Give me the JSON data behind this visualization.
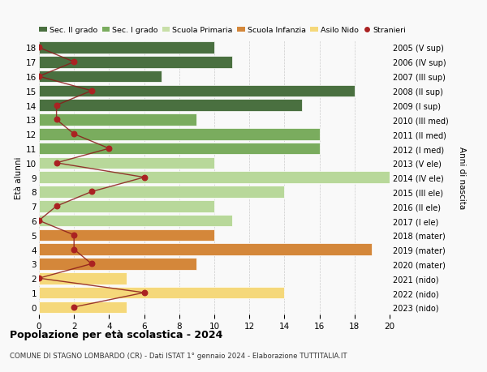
{
  "ages": [
    18,
    17,
    16,
    15,
    14,
    13,
    12,
    11,
    10,
    9,
    8,
    7,
    6,
    5,
    4,
    3,
    2,
    1,
    0
  ],
  "years_labels": [
    "2005 (V sup)",
    "2006 (IV sup)",
    "2007 (III sup)",
    "2008 (II sup)",
    "2009 (I sup)",
    "2010 (III med)",
    "2011 (II med)",
    "2012 (I med)",
    "2013 (V ele)",
    "2014 (IV ele)",
    "2015 (III ele)",
    "2016 (II ele)",
    "2017 (I ele)",
    "2018 (mater)",
    "2019 (mater)",
    "2020 (mater)",
    "2021 (nido)",
    "2022 (nido)",
    "2023 (nido)"
  ],
  "bar_values": [
    10,
    11,
    7,
    18,
    15,
    9,
    16,
    16,
    10,
    20,
    14,
    10,
    11,
    10,
    19,
    9,
    5,
    14,
    5
  ],
  "bar_colors": [
    "#4a7040",
    "#4a7040",
    "#4a7040",
    "#4a7040",
    "#4a7040",
    "#7aac5e",
    "#7aac5e",
    "#7aac5e",
    "#b8d89a",
    "#b8d89a",
    "#b8d89a",
    "#b8d89a",
    "#b8d89a",
    "#d4873a",
    "#d4873a",
    "#d4873a",
    "#f5d87a",
    "#f5d87a",
    "#f5d87a"
  ],
  "stranieri_values": [
    0,
    2,
    0,
    3,
    1,
    1,
    2,
    4,
    1,
    6,
    3,
    1,
    0,
    2,
    2,
    3,
    0,
    6,
    2
  ],
  "legend_labels": [
    "Sec. II grado",
    "Sec. I grado",
    "Scuola Primaria",
    "Scuola Infanzia",
    "Asilo Nido",
    "Stranieri"
  ],
  "legend_colors": [
    "#4a7040",
    "#7aac5e",
    "#c8dfa8",
    "#d4873a",
    "#f5d87a",
    "#aa2222"
  ],
  "title": "Popolazione per età scolastica - 2024",
  "subtitle": "COMUNE DI STAGNO LOMBARDO (CR) - Dati ISTAT 1° gennaio 2024 - Elaborazione TUTTITALIA.IT",
  "ylabel_left": "Età alunni",
  "ylabel_right": "Anni di nascita",
  "xlim": [
    0,
    20
  ],
  "xticks": [
    0,
    2,
    4,
    6,
    8,
    10,
    12,
    14,
    16,
    18,
    20
  ],
  "background_color": "#f9f9f9",
  "bar_height": 0.82
}
